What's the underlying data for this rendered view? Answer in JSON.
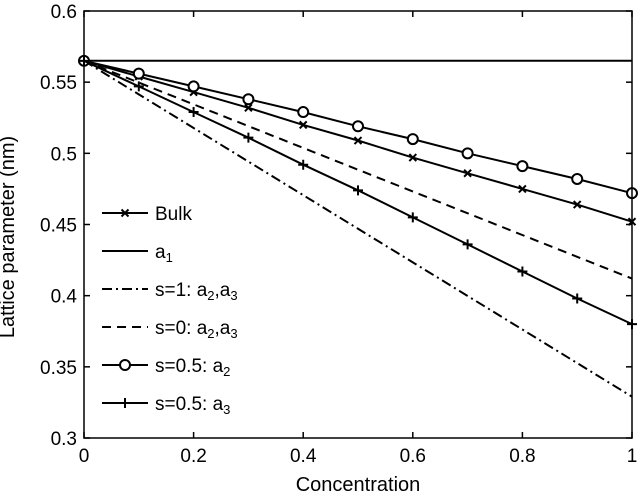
{
  "chart_data": {
    "type": "line",
    "title": "",
    "xlabel": "Concentration",
    "ylabel": "Lattice parameter (nm)",
    "xlim": [
      0,
      1
    ],
    "ylim": [
      0.3,
      0.6
    ],
    "grid": false,
    "legend_position": "bottom-left",
    "x_ticks": [
      "0",
      "0.2",
      "0.4",
      "0.6",
      "0.8",
      "1"
    ],
    "y_ticks": [
      "0.3",
      "0.35",
      "0.4",
      "0.45",
      "0.5",
      "0.55",
      "0.6"
    ],
    "series": [
      {
        "name": "Bulk",
        "label_parts": [
          "Bulk"
        ],
        "style": "solid",
        "marker": "x",
        "x": [
          0,
          0.1,
          0.2,
          0.3,
          0.4,
          0.5,
          0.6,
          0.7,
          0.8,
          0.9,
          1.0
        ],
        "y": [
          0.565,
          0.554,
          0.543,
          0.532,
          0.52,
          0.509,
          0.497,
          0.486,
          0.475,
          0.464,
          0.452
        ]
      },
      {
        "name": "a1",
        "label_parts": [
          "a",
          "1"
        ],
        "style": "solid",
        "marker": "none",
        "x": [
          0,
          1
        ],
        "y": [
          0.565,
          0.565
        ]
      },
      {
        "name": "s=1: a2,a3",
        "label_parts": [
          "s=1: a",
          "2",
          ",a",
          "3"
        ],
        "style": "dashdot",
        "marker": "none",
        "x": [
          0,
          1
        ],
        "y": [
          0.565,
          0.329
        ]
      },
      {
        "name": "s=0: a2,a3",
        "label_parts": [
          "s=0: a",
          "2",
          ",a",
          "3"
        ],
        "style": "dashed",
        "marker": "none",
        "x": [
          0,
          1
        ],
        "y": [
          0.565,
          0.412
        ]
      },
      {
        "name": "s=0.5: a2",
        "label_parts": [
          "s=0.5: a",
          "2"
        ],
        "style": "solid",
        "marker": "circle",
        "x": [
          0,
          0.1,
          0.2,
          0.3,
          0.4,
          0.5,
          0.6,
          0.7,
          0.8,
          0.9,
          1.0
        ],
        "y": [
          0.565,
          0.556,
          0.547,
          0.538,
          0.529,
          0.519,
          0.51,
          0.5,
          0.491,
          0.482,
          0.472
        ]
      },
      {
        "name": "s=0.5: a3",
        "label_parts": [
          "s=0.5: a",
          "3"
        ],
        "style": "solid",
        "marker": "plus",
        "x": [
          0,
          0.1,
          0.2,
          0.3,
          0.4,
          0.5,
          0.6,
          0.7,
          0.8,
          0.9,
          1.0
        ],
        "y": [
          0.565,
          0.547,
          0.529,
          0.511,
          0.492,
          0.474,
          0.455,
          0.436,
          0.417,
          0.398,
          0.38
        ]
      }
    ]
  }
}
